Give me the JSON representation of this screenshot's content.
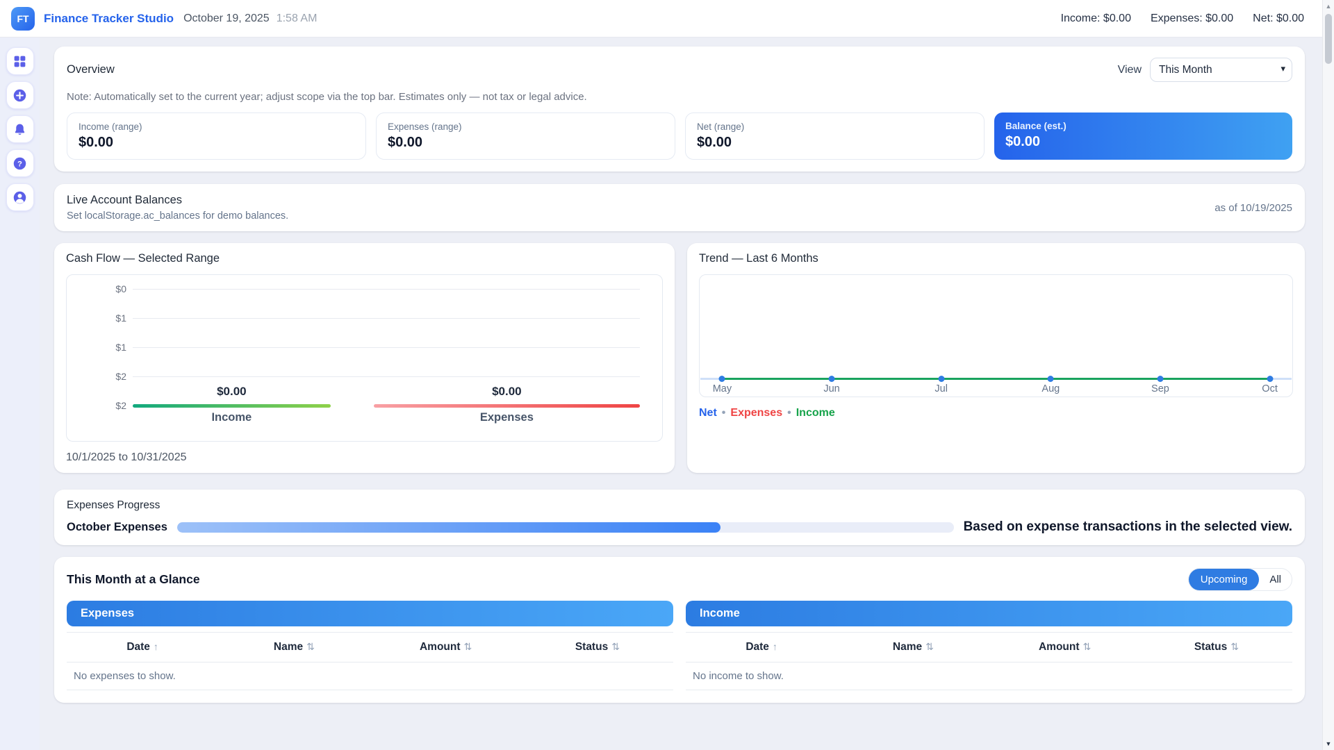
{
  "colors": {
    "accent_blue": "#2563eb",
    "banner_gradient": [
      "#2c7ce2",
      "#4aa7f7"
    ],
    "income_green": "#16a34a",
    "expense_red": "#ef4444",
    "net_blue": "#2563eb",
    "sidebar_icon_indigo": "#5b5fe8",
    "progress_fill": "#3b82f6"
  },
  "topbar": {
    "logo": "FT",
    "app_title": "Finance Tracker Studio",
    "date": "October 19, 2025",
    "time": "1:58 AM",
    "totals": {
      "income": "Income: $0.00",
      "expenses": "Expenses: $0.00",
      "net": "Net: $0.00"
    }
  },
  "sidebar": {
    "items": [
      {
        "name": "dashboard"
      },
      {
        "name": "add"
      },
      {
        "name": "notifications"
      },
      {
        "name": "help"
      },
      {
        "name": "account"
      }
    ]
  },
  "overview": {
    "title": "Overview",
    "view_label": "View",
    "view_selected": "This Month",
    "note": "Note: Automatically set to the current year; adjust scope via the top bar. Estimates only — not tax or legal advice.",
    "stats": [
      {
        "label": "Income (range)",
        "value": "$0.00"
      },
      {
        "label": "Expenses (range)",
        "value": "$0.00"
      },
      {
        "label": "Net (range)",
        "value": "$0.00"
      },
      {
        "label": "Balance (est.)",
        "value": "$0.00"
      }
    ]
  },
  "live_balances": {
    "title": "Live Account Balances",
    "subtitle": "Set localStorage.ac_balances for demo balances.",
    "as_of": "as of 10/19/2025"
  },
  "cash_flow": {
    "title": "Cash Flow — Selected Range",
    "y_ticks": [
      "$0",
      "$1",
      "$1",
      "$2",
      "$2"
    ],
    "bars": [
      {
        "label": "Income",
        "value": "$0.00"
      },
      {
        "label": "Expenses",
        "value": "$0.00"
      }
    ],
    "range": "10/1/2025 to 10/31/2025"
  },
  "trend": {
    "title": "Trend — Last 6 Months",
    "months": [
      "May",
      "Jun",
      "Jul",
      "Aug",
      "Sep",
      "Oct"
    ],
    "legend": [
      {
        "label": "Net",
        "color": "#2563eb"
      },
      {
        "label": "Expenses",
        "color": "#ef4444"
      },
      {
        "label": "Income",
        "color": "#16a34a"
      }
    ],
    "separator": "•"
  },
  "progress": {
    "title": "Expenses Progress",
    "label": "October Expenses",
    "percent": 70,
    "note": "Based on expense transactions in the selected view."
  },
  "glance": {
    "title": "This Month at a Glance",
    "filters": [
      {
        "label": "Upcoming",
        "active": true
      },
      {
        "label": "All",
        "active": false
      }
    ],
    "tables": [
      {
        "header": "Expenses",
        "columns": [
          {
            "label": "Date",
            "sort": "↑"
          },
          {
            "label": "Name",
            "sort": "⇅"
          },
          {
            "label": "Amount",
            "sort": "⇅"
          },
          {
            "label": "Status",
            "sort": "⇅"
          }
        ],
        "empty": "No expenses to show."
      },
      {
        "header": "Income",
        "columns": [
          {
            "label": "Date",
            "sort": "↑"
          },
          {
            "label": "Name",
            "sort": "⇅"
          },
          {
            "label": "Amount",
            "sort": "⇅"
          },
          {
            "label": "Status",
            "sort": "⇅"
          }
        ],
        "empty": "No income to show."
      }
    ]
  },
  "chart_data": [
    {
      "type": "bar",
      "title": "Cash Flow — Selected Range",
      "categories": [
        "Income",
        "Expenses"
      ],
      "values": [
        0,
        0
      ],
      "data_labels": [
        "$0.00",
        "$0.00"
      ],
      "y_tick_labels": [
        "$0",
        "$1",
        "$1",
        "$2",
        "$2"
      ],
      "ylim": [
        0,
        2
      ],
      "grid": true,
      "xlabel": "",
      "ylabel": "",
      "note": "10/1/2025 to 10/31/2025",
      "bar_colors": {
        "Income": "green-gradient",
        "Expenses": "red-gradient"
      }
    },
    {
      "type": "line",
      "title": "Trend — Last 6 Months",
      "x": [
        "May",
        "Jun",
        "Jul",
        "Aug",
        "Sep",
        "Oct"
      ],
      "series": [
        {
          "name": "Net",
          "values": [
            0,
            0,
            0,
            0,
            0,
            0
          ],
          "color": "#2563eb"
        },
        {
          "name": "Expenses",
          "values": [
            0,
            0,
            0,
            0,
            0,
            0
          ],
          "color": "#ef4444"
        },
        {
          "name": "Income",
          "values": [
            0,
            0,
            0,
            0,
            0,
            0
          ],
          "color": "#16a34a"
        }
      ],
      "marker_color": "#2f7ce2",
      "legend_position": "bottom-left",
      "grid": false
    }
  ],
  "scrollbar": {
    "up": "▲",
    "down": "▼"
  },
  "icons": {
    "select_chevron": "▾"
  }
}
